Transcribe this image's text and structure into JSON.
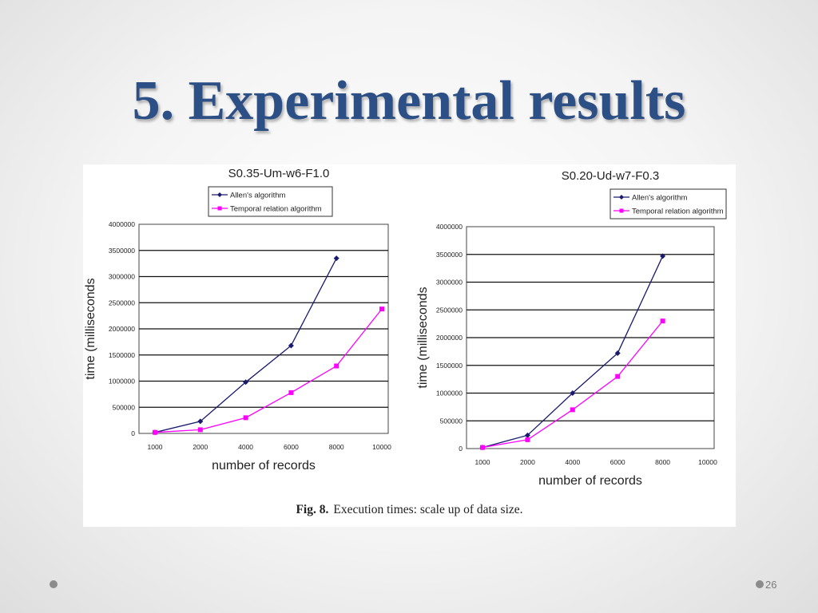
{
  "slide": {
    "title": "5. Experimental results",
    "caption_fig": "Fig. 8.",
    "caption_text": "Execution times: scale up of data size.",
    "page_number": "26"
  },
  "colors": {
    "title": "#2c4f86",
    "allen": "#1a1a6e",
    "temporal": "#ff00ff",
    "bullet": "#8c8c8c"
  },
  "chart_data": [
    {
      "type": "line",
      "title": "S0.35-Um-w6-F1.0",
      "xlabel": "number of records",
      "ylabel": "time (milliseconds",
      "categories": [
        "1000",
        "2000",
        "4000",
        "6000",
        "8000",
        "10000"
      ],
      "ylim": [
        0,
        4000000
      ],
      "yticks": [
        "0",
        "500000",
        "1000000",
        "1500000",
        "2000000",
        "2500000",
        "3000000",
        "3500000",
        "4000000"
      ],
      "grid": true,
      "legend": "top-center",
      "series": [
        {
          "name": "Allen's algorithm",
          "marker": "diamond",
          "values": [
            20000,
            230000,
            980000,
            1680000,
            3350000,
            null
          ]
        },
        {
          "name": "Temporal relation algorithm",
          "marker": "square",
          "values": [
            20000,
            70000,
            300000,
            780000,
            1290000,
            2380000
          ]
        }
      ]
    },
    {
      "type": "line",
      "title": "S0.20-Ud-w7-F0.3",
      "xlabel": "number of records",
      "ylabel": "time (milliseconds",
      "categories": [
        "1000",
        "2000",
        "4000",
        "6000",
        "8000",
        "10000"
      ],
      "ylim": [
        0,
        4000000
      ],
      "yticks": [
        "0",
        "500000",
        "1000000",
        "1500000",
        "2000000",
        "2500000",
        "3000000",
        "3500000",
        "4000000"
      ],
      "grid": true,
      "legend": "top-center",
      "series": [
        {
          "name": "Allen's algorithm",
          "marker": "diamond",
          "values": [
            20000,
            240000,
            1000000,
            1720000,
            3470000,
            null
          ]
        },
        {
          "name": "Temporal relation algorithm",
          "marker": "square",
          "values": [
            20000,
            160000,
            700000,
            1300000,
            2300000,
            null
          ]
        }
      ]
    }
  ]
}
